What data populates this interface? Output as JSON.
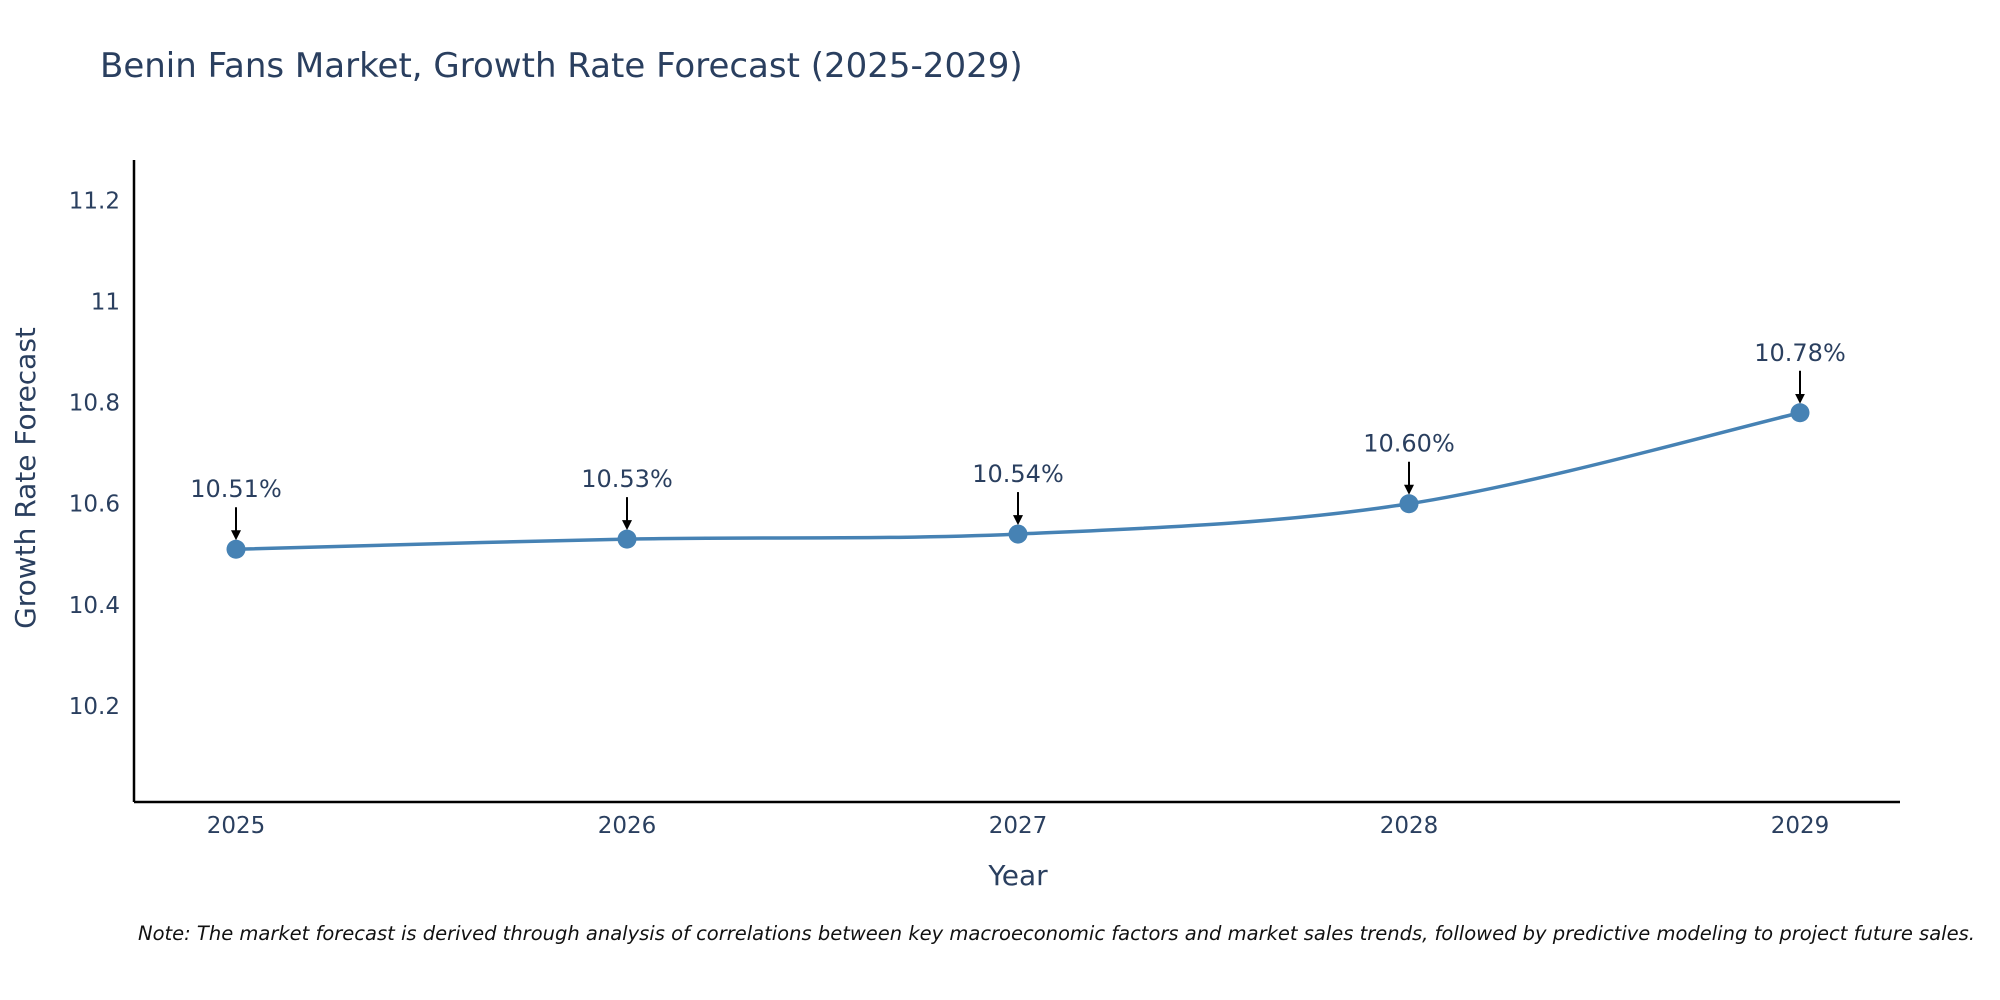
{
  "title": "Benin Fans Market, Growth Rate Forecast (2025-2029)",
  "note": "Note: The market forecast is derived through analysis of correlations between key macroeconomic factors and market sales trends, followed by predictive modeling to project future sales.",
  "colors": {
    "line": "#4682b4",
    "marker": "#4682b4",
    "text": "#2a3f5f",
    "axis": "#000000",
    "arrow": "#000000"
  },
  "chart_data": {
    "type": "line",
    "title": "Benin Fans Market, Growth Rate Forecast (2025-2029)",
    "xlabel": "Year",
    "ylabel": "Growth Rate Forecast",
    "categories": [
      "2025",
      "2026",
      "2027",
      "2028",
      "2029"
    ],
    "values": [
      10.51,
      10.53,
      10.54,
      10.6,
      10.78
    ],
    "data_labels": [
      "10.51%",
      "10.53%",
      "10.54%",
      "10.60%",
      "10.78%"
    ],
    "yticks": [
      10.2,
      10.4,
      10.6,
      10.8,
      11,
      11.2
    ],
    "ytick_labels": [
      "10.2",
      "10.4",
      "10.6",
      "10.8",
      "11",
      "11.2"
    ],
    "ylim": [
      10.01,
      11.28
    ],
    "grid": false,
    "legend": "none",
    "line_shape": "spline"
  }
}
